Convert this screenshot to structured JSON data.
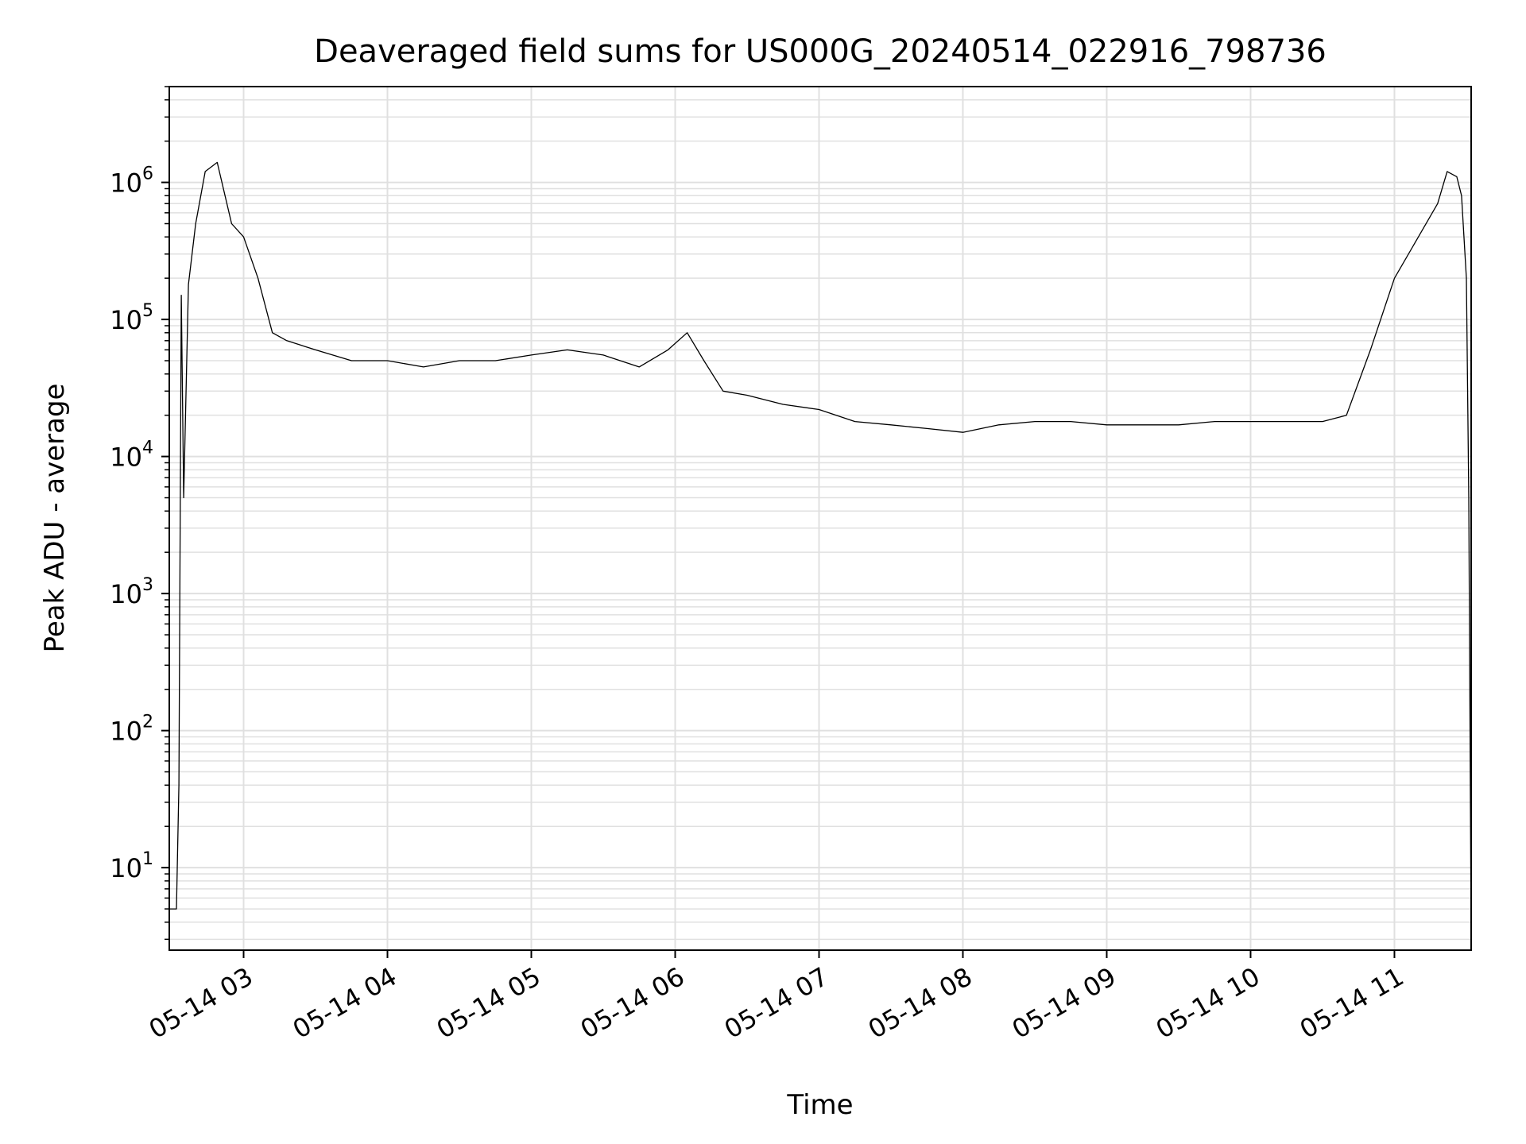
{
  "chart_data": {
    "type": "line",
    "title": "Deaveraged field sums for US000G_20240514_022916_798736",
    "xlabel": "Time",
    "ylabel": "Peak ADU - average",
    "yscale": "log",
    "ylim": [
      2.5,
      5000000
    ],
    "xlim": [
      "2024-05-14 02:29:00",
      "2024-05-14 11:32:00"
    ],
    "grid": true,
    "line_color": "#000000",
    "grid_color": "#e0e0e0",
    "x_ticks": [
      {
        "t": "2024-05-14 03:00",
        "label": "05-14 03"
      },
      {
        "t": "2024-05-14 04:00",
        "label": "05-14 04"
      },
      {
        "t": "2024-05-14 05:00",
        "label": "05-14 05"
      },
      {
        "t": "2024-05-14 06:00",
        "label": "05-14 06"
      },
      {
        "t": "2024-05-14 07:00",
        "label": "05-14 07"
      },
      {
        "t": "2024-05-14 08:00",
        "label": "05-14 08"
      },
      {
        "t": "2024-05-14 09:00",
        "label": "05-14 09"
      },
      {
        "t": "2024-05-14 10:00",
        "label": "05-14 10"
      },
      {
        "t": "2024-05-14 11:00",
        "label": "05-14 11"
      }
    ],
    "y_ticks": [
      {
        "value": 10,
        "base": "10",
        "exp": "1"
      },
      {
        "value": 100,
        "base": "10",
        "exp": "2"
      },
      {
        "value": 1000,
        "base": "10",
        "exp": "3"
      },
      {
        "value": 10000,
        "base": "10",
        "exp": "4"
      },
      {
        "value": 100000,
        "base": "10",
        "exp": "5"
      },
      {
        "value": 1000000,
        "base": "10",
        "exp": "6"
      }
    ],
    "series": [
      {
        "x": [
          "2024-05-14 02:29",
          "2024-05-14 02:32",
          "2024-05-14 02:33",
          "2024-05-14 02:34",
          "2024-05-14 02:35",
          "2024-05-14 02:37",
          "2024-05-14 02:40",
          "2024-05-14 02:44",
          "2024-05-14 02:49",
          "2024-05-14 02:55",
          "2024-05-14 03:00",
          "2024-05-14 03:06",
          "2024-05-14 03:12",
          "2024-05-14 03:18",
          "2024-05-14 03:30",
          "2024-05-14 03:45",
          "2024-05-14 04:00",
          "2024-05-14 04:15",
          "2024-05-14 04:30",
          "2024-05-14 04:45",
          "2024-05-14 05:00",
          "2024-05-14 05:15",
          "2024-05-14 05:30",
          "2024-05-14 05:45",
          "2024-05-14 05:57",
          "2024-05-14 06:05",
          "2024-05-14 06:12",
          "2024-05-14 06:20",
          "2024-05-14 06:30",
          "2024-05-14 06:45",
          "2024-05-14 07:00",
          "2024-05-14 07:15",
          "2024-05-14 07:30",
          "2024-05-14 07:45",
          "2024-05-14 08:00",
          "2024-05-14 08:15",
          "2024-05-14 08:30",
          "2024-05-14 08:45",
          "2024-05-14 09:00",
          "2024-05-14 09:15",
          "2024-05-14 09:30",
          "2024-05-14 09:45",
          "2024-05-14 10:00",
          "2024-05-14 10:15",
          "2024-05-14 10:30",
          "2024-05-14 10:40",
          "2024-05-14 10:50",
          "2024-05-14 11:00",
          "2024-05-14 11:10",
          "2024-05-14 11:18",
          "2024-05-14 11:22",
          "2024-05-14 11:26",
          "2024-05-14 11:28",
          "2024-05-14 11:30",
          "2024-05-14 11:31",
          "2024-05-14 11:32"
        ],
        "y": [
          5,
          5,
          40,
          150000,
          5000,
          180000,
          500000,
          1200000,
          1400000,
          500000,
          400000,
          200000,
          80000,
          70000,
          60000,
          50000,
          50000,
          45000,
          50000,
          50000,
          55000,
          60000,
          55000,
          45000,
          60000,
          80000,
          50000,
          30000,
          28000,
          24000,
          22000,
          18000,
          17000,
          16000,
          15000,
          17000,
          18000,
          18000,
          17000,
          17000,
          17000,
          18000,
          18000,
          18000,
          18000,
          20000,
          60000,
          200000,
          400000,
          700000,
          1200000,
          1100000,
          800000,
          200000,
          5000,
          3
        ]
      }
    ]
  }
}
